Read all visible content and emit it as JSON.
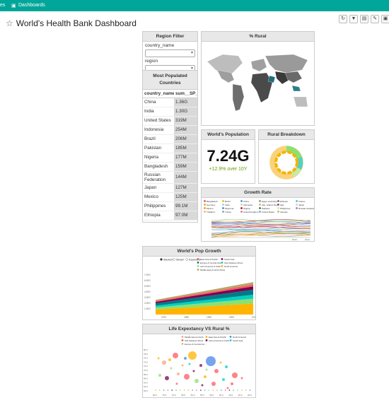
{
  "navbar": {
    "partial_item": "es",
    "dashboards": "Dashboards"
  },
  "dashboard": {
    "title": "World's Health Bank Dashboard"
  },
  "toolbar": {
    "icons": [
      "refresh-icon",
      "filter-icon",
      "css-icon",
      "edit-icon",
      "save-icon"
    ]
  },
  "region_filter": {
    "title": "Region Filter",
    "country_label": "country_name",
    "region_label": "region"
  },
  "populated": {
    "title": "Most Populated Countries",
    "col1": "country_name",
    "col2": "sum__SP_P",
    "rows": [
      {
        "country": "China",
        "value": "1.36G"
      },
      {
        "country": "India",
        "value": "1.30G"
      },
      {
        "country": "United States",
        "value": "319M"
      },
      {
        "country": "Indonesia",
        "value": "254M"
      },
      {
        "country": "Brazil",
        "value": "206M"
      },
      {
        "country": "Pakistan",
        "value": "185M"
      },
      {
        "country": "Nigeria",
        "value": "177M"
      },
      {
        "country": "Bangladesh",
        "value": "159M"
      },
      {
        "country": "Russian Federation",
        "value": "144M"
      },
      {
        "country": "Japan",
        "value": "127M"
      },
      {
        "country": "Mexico",
        "value": "125M"
      },
      {
        "country": "Philippines",
        "value": "99.1M"
      },
      {
        "country": "Ethiopia",
        "value": "97.0M"
      }
    ]
  },
  "rural": {
    "title": "% Rural"
  },
  "world_pop": {
    "title": "World's Population",
    "value": "7.24G",
    "delta": "+12.9% over 10Y"
  },
  "rural_breakdown": {
    "title": "Rural Breakdown"
  },
  "growth": {
    "title": "Growth Rate",
    "x_ticks": [
      "2013",
      "2014"
    ],
    "legend": [
      "Bangladesh",
      "Brazil",
      "China",
      "Egypt, Arab Rep.",
      "Ethiopia",
      "France",
      "Germany",
      "India",
      "Indonesia",
      "Iran, Islamic Rep.",
      "Italy",
      "Japan",
      "Mexico",
      "Myanmar",
      "Nigeria",
      "Pakistan",
      "Philippines",
      "Russian Federation",
      "Thailand",
      "Turkey",
      "United Kingdom",
      "United States",
      "Vietnam"
    ],
    "colors": [
      "#e04e4e",
      "#f4b400",
      "#4a86e8",
      "#6aa84f",
      "#a64d79",
      "#46bdc6",
      "#ff9900",
      "#9fc5e8",
      "#b6d7a8",
      "#ea9999",
      "#674ea7",
      "#cccccc",
      "#e69138",
      "#3d85c6",
      "#cc0000",
      "#38761d",
      "#ffd966",
      "#8e7cc3",
      "#f6b26b",
      "#76a5af",
      "#c27ba0",
      "#6fa8dc",
      "#93c47d"
    ]
  },
  "pop_growth": {
    "title": "World's Pop Growth",
    "controls": [
      "Stacked",
      "Stream",
      "Expanded"
    ],
    "legend": [
      "East Asia & Pacific",
      "South Asia",
      "Europe & Central Asia",
      "Sub-Saharan Africa",
      "Latin America & Carib.",
      "North America",
      "Middle East & North Africa"
    ],
    "y_ticks": [
      "7.00G",
      "6.00G",
      "5.00G",
      "4.00G",
      "3.00G",
      "2.00G",
      "1.00G"
    ],
    "x_ticks": [
      "1970",
      "1980",
      "1990",
      "2000",
      "2010"
    ],
    "colors": [
      "#ff5a5f",
      "#7b0051",
      "#007a87",
      "#00d1c1",
      "#8ce071",
      "#ffb400",
      "#b4a76c"
    ]
  },
  "life": {
    "title": "Life Expextancy VS Rural %",
    "legend": [
      "Middle East & North ...",
      "East Asia & Pacific",
      "North America",
      "Sub-Saharan Africa",
      "Latin America & Carib.",
      "South Asia",
      "Europe & Central Asi..."
    ],
    "colors": [
      "#ff9f80",
      "#ffb400",
      "#4a86e8",
      "#ff5a5f",
      "#7b0051",
      "#00d1c1",
      "#8ce071"
    ],
    "y_ticks": [
      "80.0",
      "78.0",
      "76.0",
      "74.0",
      "72.0",
      "70.0",
      "68.0",
      "66.0",
      "64.0",
      "62.0",
      "60.0"
    ],
    "x_ticks": [
      "80.0",
      "75.0",
      "70.0",
      "65.0",
      "60.0",
      "55.0",
      "50.0",
      "45.0",
      "40.0",
      "30.0",
      "20.0"
    ]
  }
}
